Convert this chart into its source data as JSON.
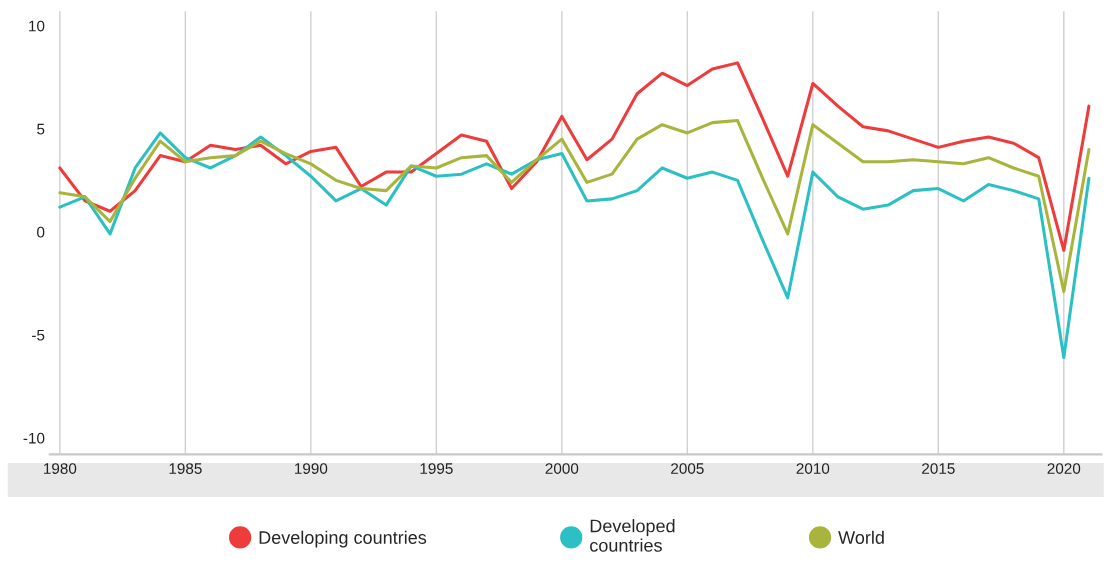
{
  "chart_data": {
    "type": "line",
    "x": [
      1980,
      1981,
      1982,
      1983,
      1984,
      1985,
      1986,
      1987,
      1988,
      1989,
      1990,
      1991,
      1992,
      1993,
      1994,
      1995,
      1996,
      1997,
      1998,
      1999,
      2000,
      2001,
      2002,
      2003,
      2004,
      2005,
      2006,
      2007,
      2008,
      2009,
      2010,
      2011,
      2012,
      2013,
      2014,
      2015,
      2016,
      2017,
      2018,
      2019,
      2020,
      2021
    ],
    "series": [
      {
        "name": "Developing countries",
        "color": "#ee3b3b",
        "values": [
          3.1,
          1.5,
          1.0,
          2.0,
          3.7,
          3.4,
          4.2,
          4.0,
          4.2,
          3.3,
          3.9,
          4.1,
          2.2,
          2.9,
          2.9,
          3.8,
          4.7,
          4.4,
          2.1,
          3.4,
          5.6,
          3.5,
          4.5,
          6.7,
          7.7,
          7.1,
          7.9,
          8.2,
          5.5,
          2.7,
          7.2,
          6.1,
          5.1,
          4.9,
          4.5,
          4.1,
          4.4,
          4.6,
          4.3,
          3.6,
          -0.9,
          6.1
        ]
      },
      {
        "name": "Developed\ncountries",
        "color": "#2bc0c4",
        "values": [
          1.2,
          1.7,
          -0.1,
          3.1,
          4.8,
          3.6,
          3.1,
          3.7,
          4.6,
          3.7,
          2.7,
          1.5,
          2.1,
          1.3,
          3.2,
          2.7,
          2.8,
          3.3,
          2.8,
          3.5,
          3.8,
          1.5,
          1.6,
          2.0,
          3.1,
          2.6,
          2.9,
          2.5,
          -0.4,
          -3.2,
          2.9,
          1.7,
          1.1,
          1.3,
          2.0,
          2.1,
          1.5,
          2.3,
          2.0,
          1.6,
          -6.1,
          2.6
        ]
      },
      {
        "name": "World",
        "color": "#a9b43c",
        "values": [
          1.9,
          1.7,
          0.5,
          2.6,
          4.4,
          3.4,
          3.6,
          3.7,
          4.4,
          3.8,
          3.3,
          2.5,
          2.1,
          2.0,
          3.2,
          3.1,
          3.6,
          3.7,
          2.4,
          3.5,
          4.5,
          2.4,
          2.8,
          4.5,
          5.2,
          4.8,
          5.3,
          5.4,
          2.6,
          -0.1,
          5.2,
          4.3,
          3.4,
          3.4,
          3.5,
          3.4,
          3.3,
          3.6,
          3.1,
          2.7,
          -2.9,
          4.0
        ]
      }
    ],
    "xlim": [
      1979.6,
      2021.5
    ],
    "xticks": [
      1980,
      1985,
      1990,
      1995,
      2000,
      2005,
      2010,
      2015,
      2020
    ],
    "ylim": [
      -10.8,
      10.7
    ],
    "yticks": [
      -10,
      -5,
      0,
      5,
      10
    ],
    "grid": "x",
    "legend": "bottom",
    "marker": "none",
    "line_style": "solid"
  }
}
